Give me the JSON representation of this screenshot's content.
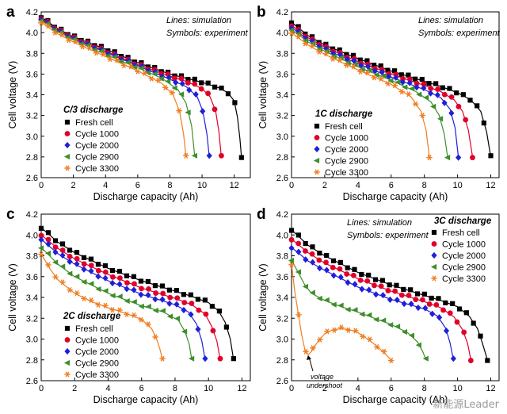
{
  "watermark": "新能源Leader",
  "chart_data": [
    {
      "type": "line",
      "panel_letter": "a",
      "title": "C/3 discharge",
      "xlabel": "Discharge capacity (Ah)",
      "ylabel": "Cell voltage (V)",
      "xlim": [
        0,
        13
      ],
      "ylim": [
        2.6,
        4.2
      ],
      "xticks": [
        0,
        2,
        4,
        6,
        8,
        10,
        12
      ],
      "yticks": [
        2.6,
        2.8,
        3.0,
        3.2,
        3.4,
        3.6,
        3.8,
        4.0,
        4.2
      ],
      "legend_position": "lower-left",
      "annotations": [
        "Lines: simulation",
        "Symbols: experiment"
      ],
      "series": [
        {
          "name": "Fresh cell",
          "color": "#000000",
          "marker": "square",
          "x": [
            0,
            1,
            2,
            4,
            6,
            8,
            9,
            10,
            11,
            11.6,
            12.0,
            12.2,
            12.35,
            12.45
          ],
          "y": [
            4.15,
            4.04,
            3.96,
            3.84,
            3.71,
            3.6,
            3.56,
            3.52,
            3.47,
            3.42,
            3.34,
            3.18,
            2.98,
            2.8
          ]
        },
        {
          "name": "Cycle 1000",
          "color": "#e0002a",
          "marker": "circle",
          "x": [
            0,
            1,
            2,
            4,
            6,
            8,
            9,
            10,
            10.5,
            10.85,
            11.05,
            11.2
          ],
          "y": [
            4.14,
            4.03,
            3.95,
            3.82,
            3.69,
            3.58,
            3.53,
            3.46,
            3.38,
            3.24,
            3.04,
            2.8
          ]
        },
        {
          "name": "Cycle 2000",
          "color": "#1f1fd8",
          "marker": "diamond",
          "x": [
            0,
            1,
            2,
            4,
            6,
            8,
            9,
            9.7,
            10.05,
            10.3,
            10.45
          ],
          "y": [
            4.13,
            4.02,
            3.94,
            3.81,
            3.68,
            3.55,
            3.48,
            3.38,
            3.24,
            3.02,
            2.8
          ]
        },
        {
          "name": "Cycle 2900",
          "color": "#3e8e2a",
          "marker": "triangle-left",
          "x": [
            0,
            1,
            2,
            4,
            6,
            7.5,
            8.5,
            9.0,
            9.35,
            9.55
          ],
          "y": [
            4.12,
            4.01,
            3.93,
            3.79,
            3.66,
            3.56,
            3.45,
            3.32,
            3.1,
            2.8
          ]
        },
        {
          "name": "Cycle 3300",
          "color": "#f07d20",
          "marker": "star",
          "x": [
            0,
            1,
            2,
            4,
            6,
            7.5,
            8.2,
            8.6,
            8.85,
            9.0
          ],
          "y": [
            4.1,
            3.99,
            3.91,
            3.77,
            3.63,
            3.51,
            3.4,
            3.24,
            3.02,
            2.8
          ]
        }
      ]
    },
    {
      "type": "line",
      "panel_letter": "b",
      "title": "1C discharge",
      "xlabel": "Discharge capacity (Ah)",
      "ylabel": "Cell voltage (V)",
      "xlim": [
        0,
        12.5
      ],
      "ylim": [
        2.6,
        4.2
      ],
      "xticks": [
        0,
        2,
        4,
        6,
        8,
        10,
        12
      ],
      "yticks": [
        2.6,
        2.8,
        3.0,
        3.2,
        3.4,
        3.6,
        3.8,
        4.0,
        4.2
      ],
      "legend_position": "lower-left",
      "annotations": [
        "Lines: simulation",
        "Symbols: experiment"
      ],
      "series": [
        {
          "name": "Fresh cell",
          "color": "#000000",
          "marker": "square",
          "x": [
            0,
            1,
            2,
            4,
            6,
            8,
            9,
            10,
            10.8,
            11.4,
            11.75,
            12.0
          ],
          "y": [
            4.1,
            3.97,
            3.88,
            3.75,
            3.63,
            3.53,
            3.48,
            3.42,
            3.35,
            3.24,
            3.04,
            2.8
          ]
        },
        {
          "name": "Cycle 1000",
          "color": "#e0002a",
          "marker": "circle",
          "x": [
            0,
            1,
            2,
            4,
            6,
            8,
            9,
            9.8,
            10.3,
            10.65,
            10.9
          ],
          "y": [
            4.07,
            3.95,
            3.86,
            3.72,
            3.6,
            3.49,
            3.43,
            3.35,
            3.24,
            3.06,
            2.8
          ]
        },
        {
          "name": "Cycle 2000",
          "color": "#1f1fd8",
          "marker": "diamond",
          "x": [
            0,
            1,
            2,
            4,
            6,
            8,
            9,
            9.55,
            9.85,
            10.05
          ],
          "y": [
            4.05,
            3.93,
            3.84,
            3.7,
            3.57,
            3.45,
            3.37,
            3.26,
            3.08,
            2.8
          ]
        },
        {
          "name": "Cycle 2900",
          "color": "#3e8e2a",
          "marker": "triangle-left",
          "x": [
            0,
            1,
            2,
            4,
            6,
            7.5,
            8.4,
            8.9,
            9.2,
            9.4
          ],
          "y": [
            4.03,
            3.91,
            3.82,
            3.67,
            3.54,
            3.43,
            3.33,
            3.2,
            3.02,
            2.8
          ]
        },
        {
          "name": "Cycle 3300",
          "color": "#f07d20",
          "marker": "star",
          "x": [
            0,
            1,
            2,
            4,
            6,
            7.2,
            7.8,
            8.1,
            8.3
          ],
          "y": [
            4.0,
            3.88,
            3.79,
            3.64,
            3.5,
            3.38,
            3.24,
            3.06,
            2.8
          ]
        }
      ]
    },
    {
      "type": "line",
      "panel_letter": "c",
      "title": "2C discharge",
      "xlabel": "Discharge capacity (Ah)",
      "ylabel": "Cell voltage (V)",
      "xlim": [
        0,
        12.5
      ],
      "ylim": [
        2.6,
        4.2
      ],
      "xticks": [
        0,
        2,
        4,
        6,
        8,
        10,
        12
      ],
      "yticks": [
        2.6,
        2.8,
        3.0,
        3.2,
        3.4,
        3.6,
        3.8,
        4.0,
        4.2
      ],
      "legend_position": "lower-left",
      "annotations": [
        "Lines: simulation",
        "Symbols: experiment"
      ],
      "series": [
        {
          "name": "Fresh cell",
          "color": "#000000",
          "marker": "square",
          "x": [
            0,
            1,
            2,
            4,
            6,
            8,
            9,
            10,
            10.6,
            11.0,
            11.3,
            11.5
          ],
          "y": [
            4.07,
            3.93,
            3.83,
            3.68,
            3.56,
            3.46,
            3.41,
            3.35,
            3.27,
            3.16,
            3.0,
            2.8
          ]
        },
        {
          "name": "Cycle 1000",
          "color": "#e0002a",
          "marker": "circle",
          "x": [
            0,
            1,
            2,
            4,
            6,
            8,
            9,
            9.8,
            10.2,
            10.5,
            10.7
          ],
          "y": [
            4.0,
            3.87,
            3.77,
            3.62,
            3.49,
            3.39,
            3.33,
            3.24,
            3.12,
            2.98,
            2.8
          ]
        },
        {
          "name": "Cycle 2000",
          "color": "#1f1fd8",
          "marker": "diamond",
          "x": [
            0,
            1,
            2,
            4,
            6,
            8,
            8.8,
            9.3,
            9.6,
            9.8
          ],
          "y": [
            3.96,
            3.82,
            3.72,
            3.56,
            3.43,
            3.33,
            3.26,
            3.14,
            2.98,
            2.8
          ]
        },
        {
          "name": "Cycle 2900",
          "color": "#3e8e2a",
          "marker": "triangle-left",
          "x": [
            0,
            1,
            2,
            4,
            6,
            7.3,
            8.2,
            8.6,
            8.85,
            9.0
          ],
          "y": [
            3.88,
            3.72,
            3.6,
            3.44,
            3.32,
            3.26,
            3.18,
            3.07,
            2.95,
            2.8
          ]
        },
        {
          "name": "Cycle 3300",
          "color": "#f07d20",
          "marker": "star",
          "x": [
            0,
            0.5,
            1,
            2,
            3,
            4,
            5,
            6,
            6.6,
            6.9,
            7.1,
            7.25
          ],
          "y": [
            3.82,
            3.68,
            3.57,
            3.44,
            3.36,
            3.3,
            3.25,
            3.19,
            3.1,
            3.0,
            2.9,
            2.8
          ]
        }
      ]
    },
    {
      "type": "line",
      "panel_letter": "d",
      "title": "3C discharge",
      "xlabel": "Discharge capacity (Ah)",
      "ylabel": "Cell voltage (V)",
      "xlim": [
        0,
        12.5
      ],
      "ylim": [
        2.6,
        4.2
      ],
      "xticks": [
        0,
        2,
        4,
        6,
        8,
        10,
        12
      ],
      "yticks": [
        2.6,
        2.8,
        3.0,
        3.2,
        3.4,
        3.6,
        3.8,
        4.0,
        4.2
      ],
      "legend_position": "top-right",
      "annotations": [
        "Lines: simulation",
        "Symbols: experiment",
        "voltage undershoot"
      ],
      "series": [
        {
          "name": "Fresh cell",
          "color": "#000000",
          "marker": "square",
          "x": [
            0,
            1,
            2,
            4,
            6,
            8,
            9,
            10,
            10.7,
            11.2,
            11.5,
            11.8
          ],
          "y": [
            4.05,
            3.9,
            3.8,
            3.64,
            3.52,
            3.42,
            3.37,
            3.31,
            3.22,
            3.1,
            2.96,
            2.8
          ]
        },
        {
          "name": "Cycle 1000",
          "color": "#e0002a",
          "marker": "circle",
          "x": [
            0,
            1,
            2,
            4,
            6,
            8,
            9,
            9.8,
            10.3,
            10.6,
            10.8
          ],
          "y": [
            3.96,
            3.83,
            3.73,
            3.58,
            3.46,
            3.36,
            3.3,
            3.21,
            3.09,
            2.96,
            2.8
          ]
        },
        {
          "name": "Cycle 2000",
          "color": "#1f1fd8",
          "marker": "diamond",
          "x": [
            0,
            1,
            2,
            4,
            6,
            8,
            8.8,
            9.3,
            9.55,
            9.75
          ],
          "y": [
            3.88,
            3.75,
            3.66,
            3.5,
            3.38,
            3.29,
            3.22,
            3.1,
            2.96,
            2.8
          ]
        },
        {
          "name": "Cycle 2900",
          "color": "#3e8e2a",
          "marker": "triangle-left",
          "x": [
            0,
            0.4,
            0.8,
            1.2,
            2,
            3,
            4,
            5,
            6,
            7,
            7.6,
            7.9,
            8.1
          ],
          "y": [
            3.76,
            3.64,
            3.52,
            3.44,
            3.37,
            3.31,
            3.26,
            3.2,
            3.14,
            3.06,
            2.97,
            2.88,
            2.8
          ]
        },
        {
          "name": "Cycle 3300",
          "color": "#f07d20",
          "marker": "star",
          "x": [
            0,
            0.2,
            0.4,
            0.6,
            0.8,
            1.0,
            1.2,
            1.6,
            2,
            2.5,
            3,
            3.5,
            4,
            4.5,
            5,
            5.5,
            6
          ],
          "y": [
            3.72,
            3.45,
            3.25,
            3.05,
            2.9,
            2.85,
            2.88,
            2.98,
            3.05,
            3.09,
            3.1,
            3.09,
            3.06,
            3.01,
            2.95,
            2.88,
            2.8
          ]
        }
      ]
    }
  ]
}
